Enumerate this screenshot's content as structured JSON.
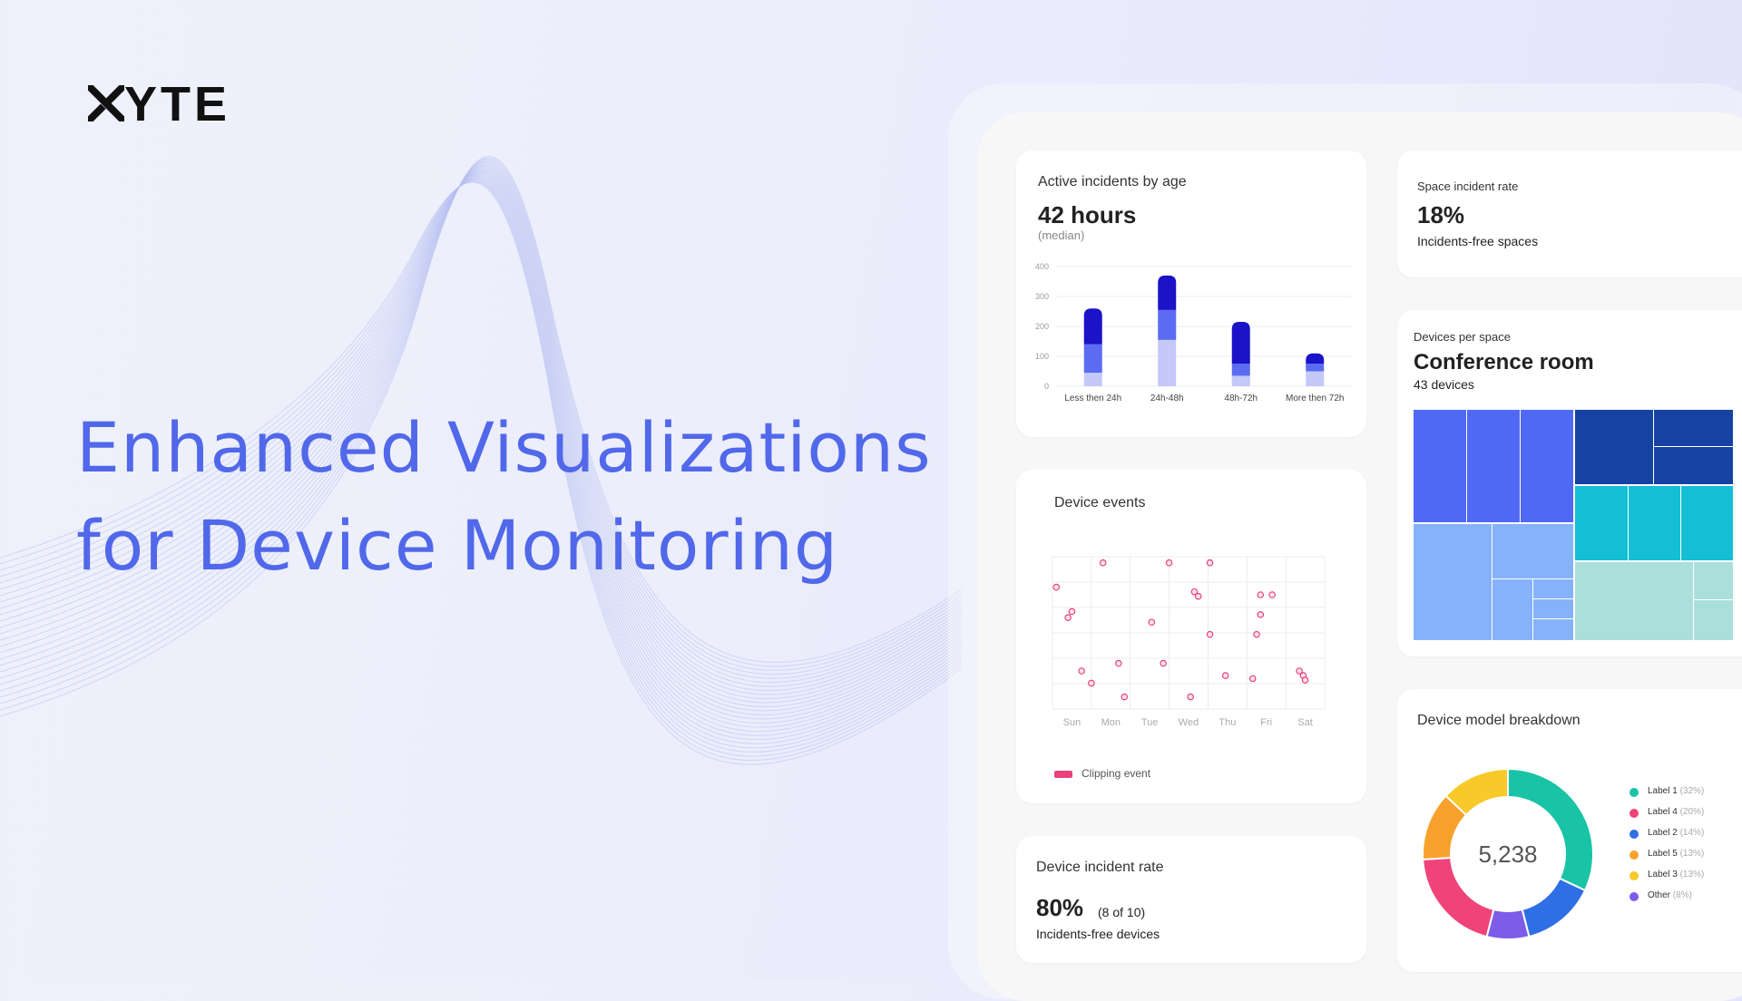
{
  "brand": {
    "logo_text": "YTE",
    "logo_full": "XYTE"
  },
  "headline": {
    "line1": "Enhanced Visualizations",
    "line2": "for Device Monitoring"
  },
  "incidents_card": {
    "title": "Active incidents by age",
    "value": "42 hours",
    "note": "(median)",
    "y_ticks": [
      "0",
      "100",
      "200",
      "300",
      "400"
    ],
    "categories": [
      "Less then 24h",
      "24h-48h",
      "48h-72h",
      "More then 72h"
    ]
  },
  "space_rate_card": {
    "title": "Space incident rate",
    "value": "18%",
    "subtitle": "Incidents-free spaces"
  },
  "devices_space_card": {
    "title": "Devices per space",
    "value": "Conference room",
    "subtitle": "43 devices"
  },
  "events_card": {
    "title": "Device events",
    "days": [
      "Sun",
      "Mon",
      "Tue",
      "Wed",
      "Thu",
      "Fri",
      "Sat"
    ],
    "legend": "Clipping event"
  },
  "model_card": {
    "title": "Device model breakdown",
    "total": "5,238",
    "legend": [
      {
        "label": "Label 1",
        "pct": "(32%)"
      },
      {
        "label": "Label 4",
        "pct": "(20%)"
      },
      {
        "label": "Label 2",
        "pct": "(14%)"
      },
      {
        "label": "Label 5",
        "pct": "(13%)"
      },
      {
        "label": "Label 3",
        "pct": "(13%)"
      },
      {
        "label": "Other",
        "pct": "(8%)"
      }
    ]
  },
  "device_rate_card": {
    "title": "Device incident rate",
    "value": "80%",
    "detail": "(8 of 10)",
    "subtitle": "Incidents-free devices"
  },
  "colors": {
    "accent": "#5168ea",
    "bar_dark": "#1a13c8",
    "bar_mid": "#5b6cf2",
    "bar_light": "#c4c9f8",
    "event_point": "#e8437b",
    "donut": [
      "#19c3a5",
      "#2f6fe6",
      "#7c5ce8",
      "#f0437a",
      "#f7a12c",
      "#f8c928"
    ],
    "legend_dots": [
      "#19c3a5",
      "#f0437a",
      "#2f6fe6",
      "#f7a12c",
      "#f8c928",
      "#7c5ce8"
    ]
  },
  "chart_data": [
    {
      "type": "bar",
      "title": "Active incidents by age",
      "categories": [
        "Less then 24h",
        "24h-48h",
        "48h-72h",
        "More then 72h"
      ],
      "series": [
        {
          "values": [
            45,
            155,
            35,
            50
          ]
        },
        {
          "values": [
            95,
            100,
            40,
            25
          ]
        },
        {
          "values": [
            120,
            115,
            140,
            35
          ]
        }
      ],
      "ylim": [
        0,
        400
      ],
      "stacked": true,
      "grid": true
    },
    {
      "type": "scatter",
      "title": "Device events",
      "categories": [
        "Sun",
        "Mon",
        "Tue",
        "Wed",
        "Thu",
        "Fri",
        "Sat"
      ],
      "x": [
        0.1,
        0.5,
        0.4,
        0.75,
        1.0,
        1.85,
        1.7,
        1.3,
        2.55,
        2.85,
        3.0,
        3.55,
        3.65,
        3.75,
        4.05,
        4.05,
        4.45,
        5.25,
        5.35,
        5.35,
        5.15,
        5.65,
        6.35,
        6.45,
        6.5
      ],
      "y": [
        4.0,
        3.2,
        3.0,
        1.25,
        0.85,
        0.4,
        1.5,
        4.8,
        2.85,
        1.5,
        4.8,
        0.4,
        3.85,
        3.7,
        2.45,
        4.8,
        1.1,
        2.45,
        3.1,
        3.75,
        1.0,
        3.75,
        1.25,
        1.1,
        0.95
      ],
      "series_name": "Clipping event"
    },
    {
      "type": "pie",
      "title": "Device model breakdown",
      "labels": [
        "Label 1",
        "Label 4",
        "Label 2",
        "Label 5",
        "Label 3",
        "Other"
      ],
      "values": [
        32,
        20,
        14,
        13,
        13,
        8
      ],
      "total": "5,238"
    }
  ]
}
